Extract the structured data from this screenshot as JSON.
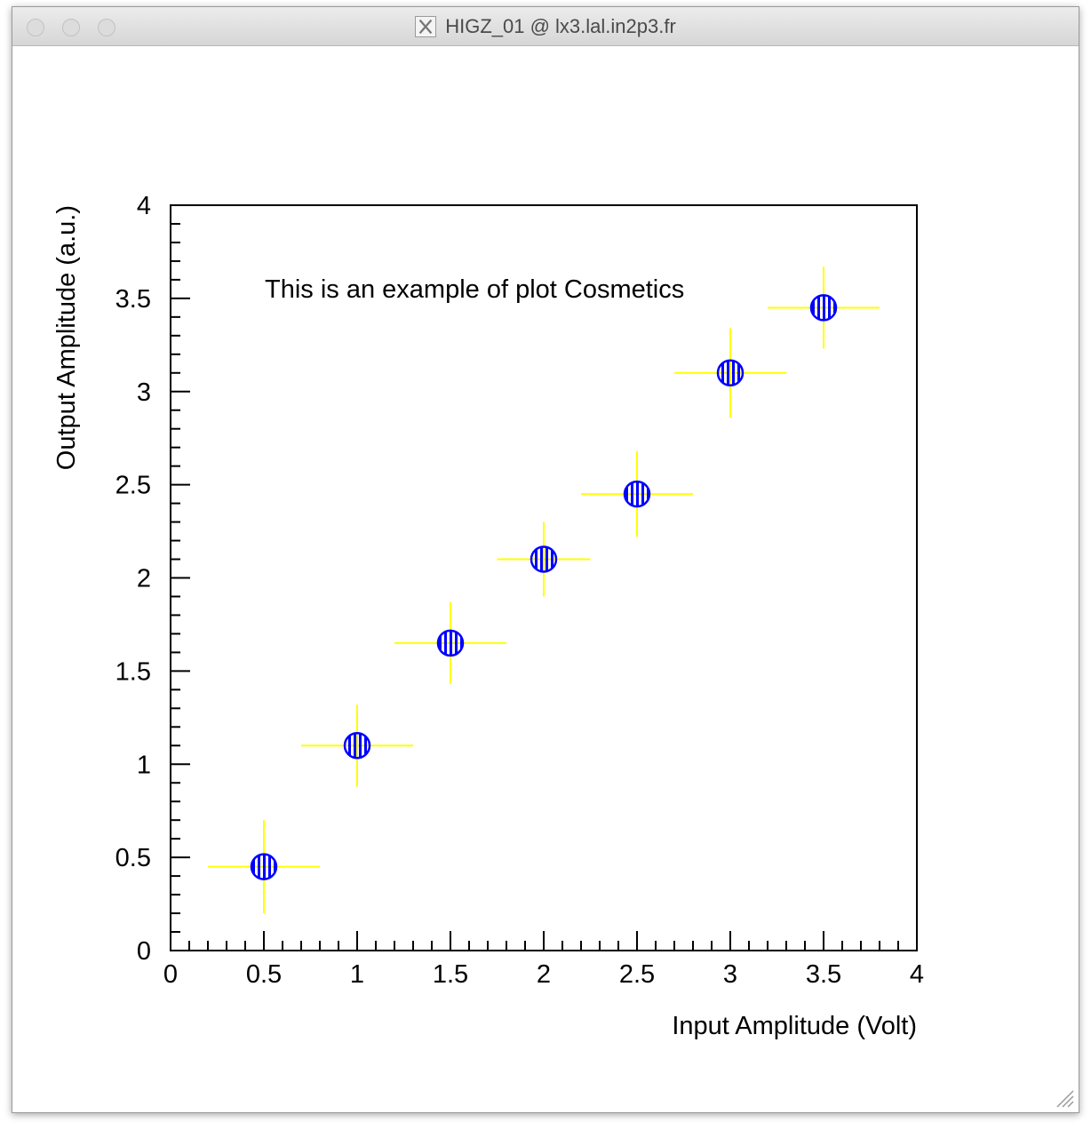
{
  "window": {
    "title": "HIGZ_01 @ lx3.lal.in2p3.fr",
    "icon": "x11-icon"
  },
  "chart_data": {
    "type": "scatter",
    "title": "This is an example of plot Cosmetics",
    "xlabel": "Input Amplitude  (Volt)",
    "ylabel": "Output Amplitude (a.u.)",
    "xlim": [
      0,
      4
    ],
    "ylim": [
      0,
      4
    ],
    "x_ticks": [
      "0",
      "0.5",
      "1",
      "1.5",
      "2",
      "2.5",
      "3",
      "3.5",
      "4"
    ],
    "y_ticks": [
      "0",
      "0.5",
      "1",
      "1.5",
      "2",
      "2.5",
      "3",
      "3.5",
      "4"
    ],
    "grid": false,
    "legend": "none",
    "marker_color": "#0000ff",
    "error_bar_color": "#ffff00",
    "series": [
      {
        "x": [
          0.5,
          1.0,
          1.5,
          2.0,
          2.5,
          3.0,
          3.5
        ],
        "y": [
          0.45,
          1.1,
          1.65,
          2.1,
          2.45,
          3.1,
          3.45
        ],
        "x_error": [
          0.3,
          0.3,
          0.3,
          0.25,
          0.3,
          0.3,
          0.3
        ],
        "y_error": [
          0.25,
          0.22,
          0.22,
          0.2,
          0.23,
          0.24,
          0.22
        ]
      }
    ]
  }
}
